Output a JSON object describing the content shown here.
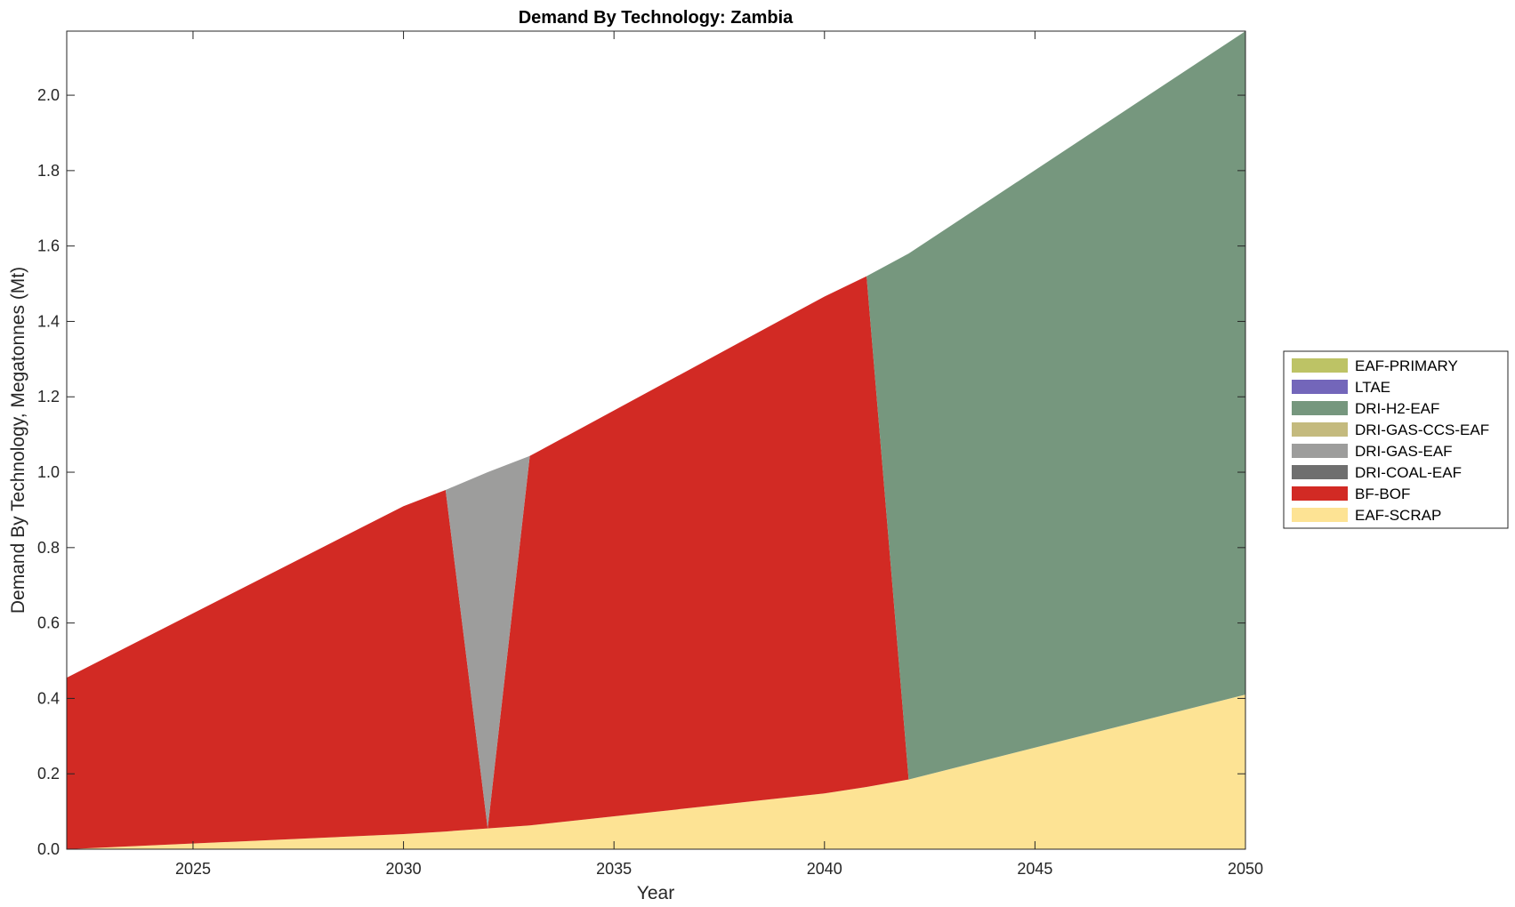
{
  "chart_data": {
    "type": "area",
    "title": "Demand By Technology: Zambia",
    "xlabel": "Year",
    "ylabel": "Demand By Technology, Megatonnes (Mt)",
    "xlim": [
      2022,
      2050
    ],
    "ylim": [
      0,
      2.17
    ],
    "x_ticks": [
      "2025",
      "2030",
      "2035",
      "2040",
      "2045",
      "2050"
    ],
    "y_ticks": [
      "0.0",
      "0.2",
      "0.4",
      "0.6",
      "0.8",
      "1.0",
      "1.2",
      "1.4",
      "1.6",
      "1.8",
      "2.0"
    ],
    "grid": false,
    "legend_position": "east-outside",
    "x": [
      2022,
      2030,
      2031,
      2032,
      2033,
      2040,
      2041,
      2042,
      2050
    ],
    "series": [
      {
        "name": "EAF-SCRAP",
        "color": "#FDE394",
        "values": [
          0.0,
          0.04,
          0.047,
          0.055,
          0.063,
          0.148,
          0.165,
          0.185,
          0.41
        ]
      },
      {
        "name": "BF-BOF",
        "color": "#D22A24",
        "values": [
          0.455,
          0.87,
          0.906,
          0.0,
          0.98,
          1.318,
          1.355,
          0.0,
          0.0
        ]
      },
      {
        "name": "DRI-COAL-EAF",
        "color": "#6F6F6F",
        "values": [
          0,
          0,
          0,
          0,
          0,
          0,
          0,
          0,
          0
        ]
      },
      {
        "name": "DRI-GAS-EAF",
        "color": "#9D9D9C",
        "values": [
          0,
          0,
          0,
          0.945,
          0,
          0,
          0,
          0,
          0
        ]
      },
      {
        "name": "DRI-GAS-CCS-EAF",
        "color": "#C4BA7E",
        "values": [
          0,
          0,
          0,
          0,
          0,
          0,
          0,
          0,
          0
        ]
      },
      {
        "name": "DRI-H2-EAF",
        "color": "#76977E",
        "values": [
          0,
          0,
          0,
          0,
          0,
          0,
          0,
          1.395,
          1.76
        ]
      },
      {
        "name": "LTAE",
        "color": "#7366BA",
        "values": [
          0,
          0,
          0,
          0,
          0,
          0,
          0,
          0,
          0
        ]
      },
      {
        "name": "EAF-PRIMARY",
        "color": "#BDC365",
        "values": [
          0,
          0,
          0,
          0,
          0,
          0,
          0,
          0,
          0
        ]
      }
    ],
    "legend_order": [
      "EAF-PRIMARY",
      "LTAE",
      "DRI-H2-EAF",
      "DRI-GAS-CCS-EAF",
      "DRI-GAS-EAF",
      "DRI-COAL-EAF",
      "BF-BOF",
      "EAF-SCRAP"
    ]
  }
}
